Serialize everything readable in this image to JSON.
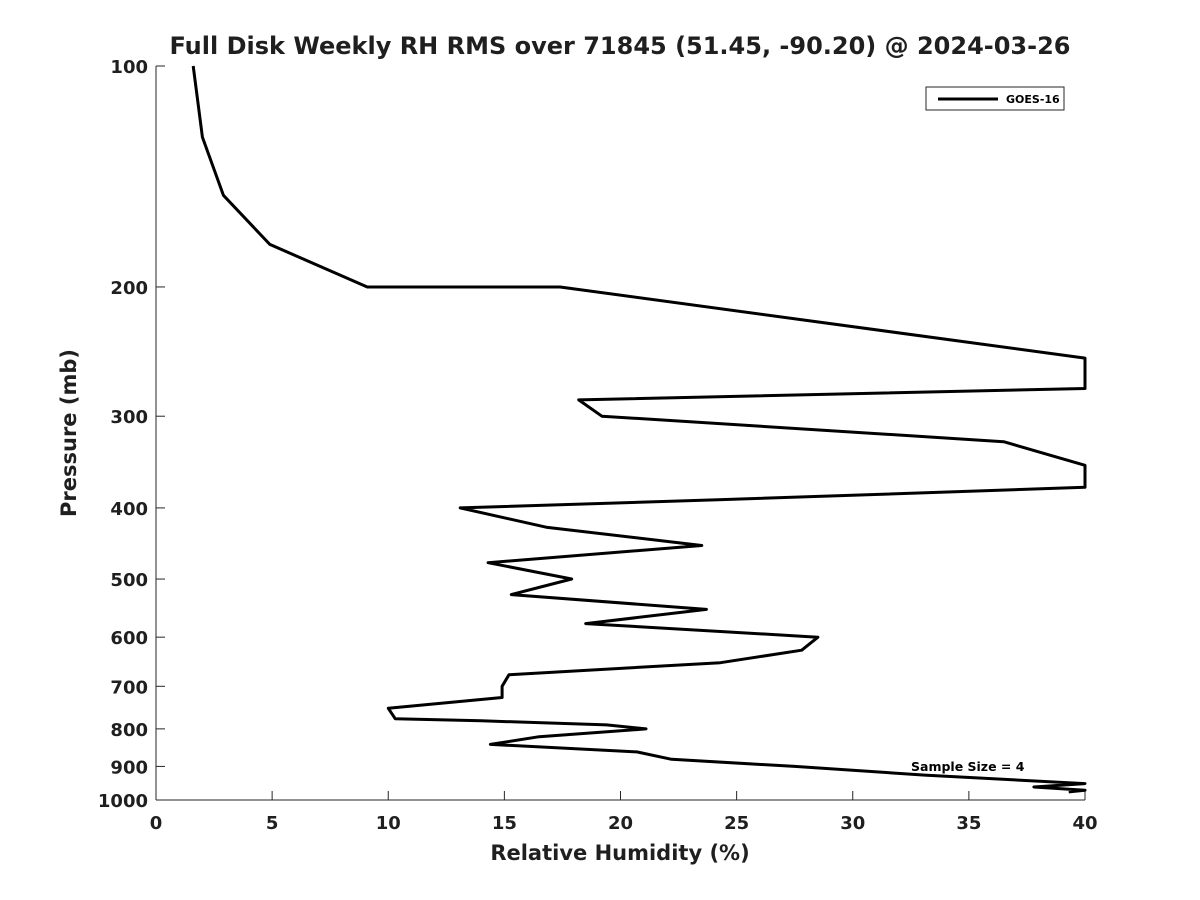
{
  "chart_data": {
    "type": "line",
    "title": "Full Disk Weekly RH RMS over 71845 (51.45, -90.20) @ 2024-03-26",
    "xlabel": "Relative Humidity (%)",
    "ylabel": "Pressure (mb)",
    "xlim": [
      0,
      40
    ],
    "ylim": [
      1000,
      100
    ],
    "y_scale": "log",
    "y_reversed": true,
    "grid": false,
    "legend_position": "top-right",
    "x_ticks": [
      0,
      5,
      10,
      15,
      20,
      25,
      30,
      35,
      40
    ],
    "y_ticks": [
      100,
      200,
      300,
      400,
      500,
      600,
      700,
      800,
      900,
      1000
    ],
    "annotation": "Sample Size = 4",
    "series": [
      {
        "name": "GOES-16",
        "color": "#000000",
        "points": [
          [
            1.6,
            100
          ],
          [
            2.0,
            125
          ],
          [
            2.9,
            150
          ],
          [
            4.9,
            175
          ],
          [
            9.1,
            200
          ],
          [
            17.4,
            200
          ],
          [
            40.0,
            250
          ],
          [
            40.0,
            275
          ],
          [
            18.2,
            285
          ],
          [
            19.2,
            300
          ],
          [
            36.5,
            325
          ],
          [
            40.0,
            350
          ],
          [
            40.0,
            375
          ],
          [
            24.2,
            390
          ],
          [
            13.1,
            400
          ],
          [
            16.8,
            425
          ],
          [
            23.5,
            450
          ],
          [
            14.3,
            475
          ],
          [
            17.9,
            500
          ],
          [
            15.3,
            525
          ],
          [
            23.7,
            550
          ],
          [
            18.5,
            575
          ],
          [
            28.5,
            600
          ],
          [
            27.8,
            625
          ],
          [
            24.3,
            650
          ],
          [
            15.2,
            675
          ],
          [
            14.9,
            700
          ],
          [
            14.9,
            725
          ],
          [
            10.0,
            750
          ],
          [
            10.3,
            775
          ],
          [
            14.0,
            780
          ],
          [
            19.4,
            790
          ],
          [
            21.1,
            800
          ],
          [
            16.5,
            820
          ],
          [
            14.4,
            840
          ],
          [
            20.7,
            860
          ],
          [
            22.2,
            880
          ],
          [
            27.5,
            900
          ],
          [
            33.1,
            925
          ],
          [
            40.0,
            950
          ],
          [
            37.8,
            960
          ],
          [
            40.0,
            970
          ],
          [
            39.3,
            975
          ]
        ]
      }
    ]
  }
}
